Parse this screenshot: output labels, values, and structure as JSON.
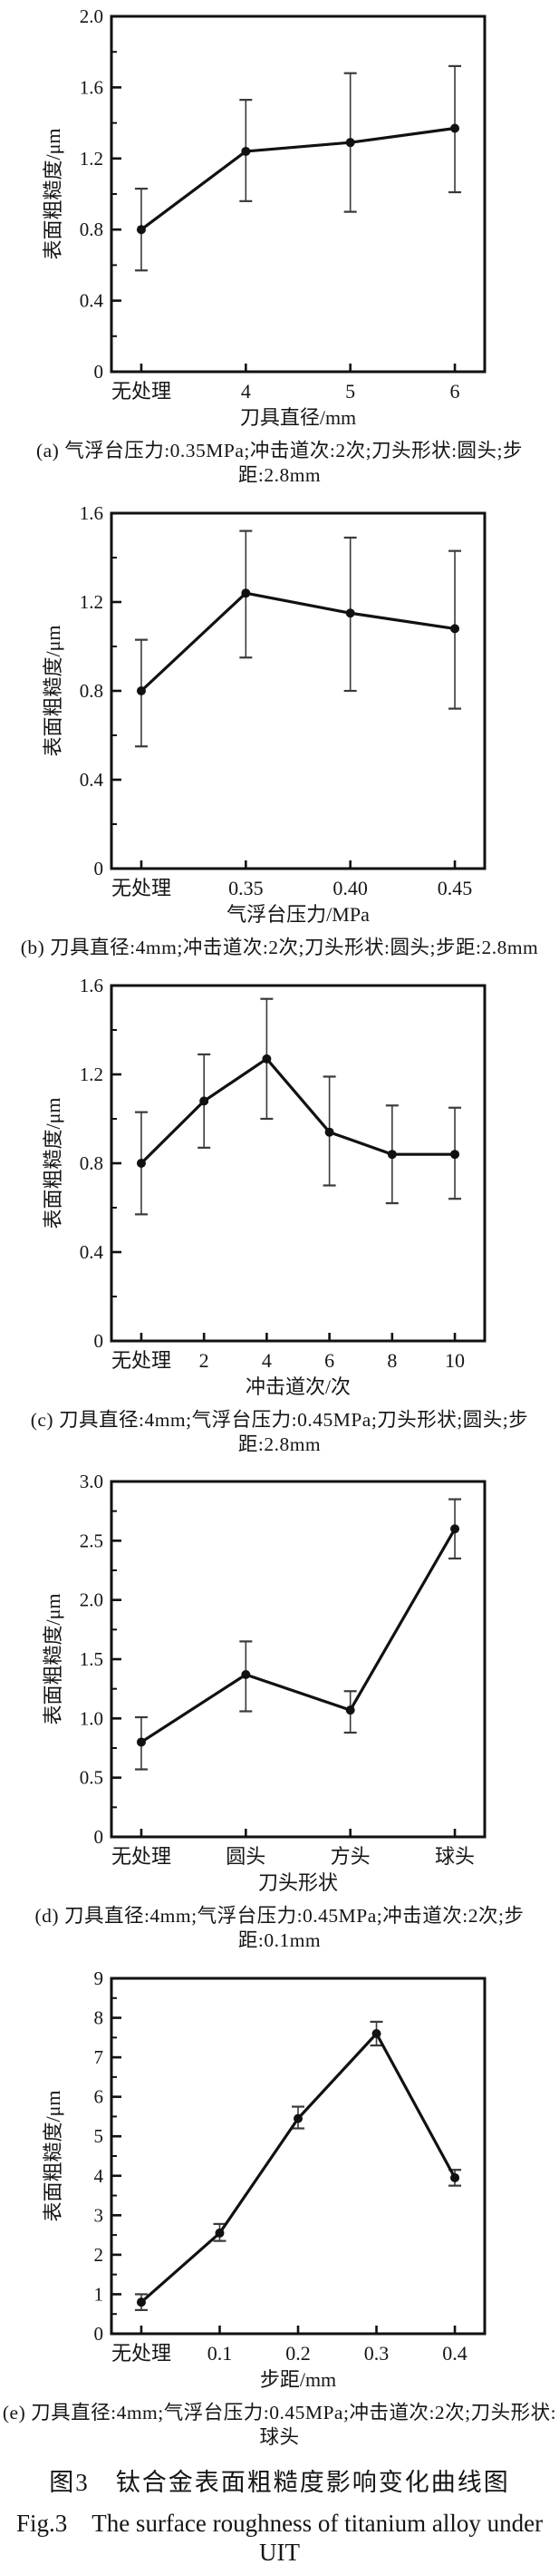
{
  "figure": {
    "title_zh": "图3　钛合金表面粗糙度影响变化曲线图",
    "title_en": "Fig.3　The surface roughness of titanium alloy under UIT"
  },
  "colors": {
    "line": "#111111",
    "marker": "#111111",
    "error_bar": "#3a3a3a",
    "axis": "#111111",
    "text": "#151515",
    "background": "#ffffff"
  },
  "chart_data": [
    {
      "id": "a",
      "type": "line",
      "title": "",
      "xlabel": "刀具直径/mm",
      "ylabel": "表面粗糙度/μm",
      "categories": [
        "无处理",
        "4",
        "5",
        "6"
      ],
      "values": [
        0.8,
        1.24,
        1.29,
        1.37
      ],
      "err_low": [
        0.57,
        0.96,
        0.9,
        1.01
      ],
      "err_high": [
        1.03,
        1.53,
        1.68,
        1.72
      ],
      "ylim": [
        0,
        2.0
      ],
      "yticks": [
        0,
        0.4,
        0.8,
        1.2,
        1.6,
        2.0
      ],
      "ytick_labels": [
        "0",
        "0.4",
        "0.8",
        "1.2",
        "1.6",
        "2.0"
      ],
      "grid": false,
      "legend": "none",
      "caption": "(a) 气浮台压力:0.35MPa;冲击道次:2次;刀头形状:圆头;步距:2.8mm"
    },
    {
      "id": "b",
      "type": "line",
      "title": "",
      "xlabel": "气浮台压力/MPa",
      "ylabel": "表面粗糙度/μm",
      "categories": [
        "无处理",
        "0.35",
        "0.40",
        "0.45"
      ],
      "values": [
        0.8,
        1.24,
        1.15,
        1.08
      ],
      "err_low": [
        0.55,
        0.95,
        0.8,
        0.72
      ],
      "err_high": [
        1.03,
        1.52,
        1.49,
        1.43
      ],
      "ylim": [
        0,
        1.6
      ],
      "yticks": [
        0,
        0.4,
        0.8,
        1.2,
        1.6
      ],
      "ytick_labels": [
        "0",
        "0.4",
        "0.8",
        "1.2",
        "1.6"
      ],
      "grid": false,
      "legend": "none",
      "caption": "(b) 刀具直径:4mm;冲击道次:2次;刀头形状:圆头;步距:2.8mm"
    },
    {
      "id": "c",
      "type": "line",
      "title": "",
      "xlabel": "冲击道次/次",
      "ylabel": "表面粗糙度/μm",
      "categories": [
        "无处理",
        "2",
        "4",
        "6",
        "8",
        "10"
      ],
      "values": [
        0.8,
        1.08,
        1.27,
        0.94,
        0.84,
        0.84
      ],
      "err_low": [
        0.57,
        0.87,
        1.0,
        0.7,
        0.62,
        0.64
      ],
      "err_high": [
        1.03,
        1.29,
        1.54,
        1.19,
        1.06,
        1.05
      ],
      "ylim": [
        0,
        1.6
      ],
      "yticks": [
        0,
        0.4,
        0.8,
        1.2,
        1.6
      ],
      "ytick_labels": [
        "0",
        "0.4",
        "0.8",
        "1.2",
        "1.6"
      ],
      "grid": false,
      "legend": "none",
      "caption": "(c) 刀具直径:4mm;气浮台压力:0.45MPa;刀头形状;圆头;步距:2.8mm"
    },
    {
      "id": "d",
      "type": "line",
      "title": "",
      "xlabel": "刀头形状",
      "ylabel": "表面粗糙度/μm",
      "categories": [
        "无处理",
        "圆头",
        "方头",
        "球头"
      ],
      "values": [
        0.8,
        1.37,
        1.07,
        2.6
      ],
      "err_low": [
        0.57,
        1.06,
        0.88,
        2.35
      ],
      "err_high": [
        1.01,
        1.65,
        1.23,
        2.85
      ],
      "ylim": [
        0,
        3.0
      ],
      "yticks": [
        0,
        0.5,
        1.0,
        1.5,
        2.0,
        2.5,
        3.0
      ],
      "ytick_labels": [
        "0",
        "0.5",
        "1.0",
        "1.5",
        "2.0",
        "2.5",
        "3.0"
      ],
      "grid": false,
      "legend": "none",
      "caption": "(d) 刀具直径:4mm;气浮台压力:0.45MPa;冲击道次:2次;步距:0.1mm"
    },
    {
      "id": "e",
      "type": "line",
      "title": "",
      "xlabel": "步距/mm",
      "ylabel": "表面粗糙度/μm",
      "categories": [
        "无处理",
        "0.1",
        "0.2",
        "0.3",
        "0.4"
      ],
      "values": [
        0.8,
        2.55,
        5.45,
        7.6,
        3.95
      ],
      "err_low": [
        0.6,
        2.35,
        5.2,
        7.3,
        3.75
      ],
      "err_high": [
        1.0,
        2.78,
        5.75,
        7.9,
        4.15
      ],
      "ylim": [
        0,
        9
      ],
      "yticks": [
        0,
        1,
        2,
        3,
        4,
        5,
        6,
        7,
        8,
        9
      ],
      "ytick_labels": [
        "0",
        "1",
        "2",
        "3",
        "4",
        "5",
        "6",
        "7",
        "8",
        "9"
      ],
      "grid": false,
      "legend": "none",
      "caption": "(e) 刀具直径:4mm;气浮台压力:0.45MPa;冲击道次:2次;刀头形状:球头"
    }
  ]
}
